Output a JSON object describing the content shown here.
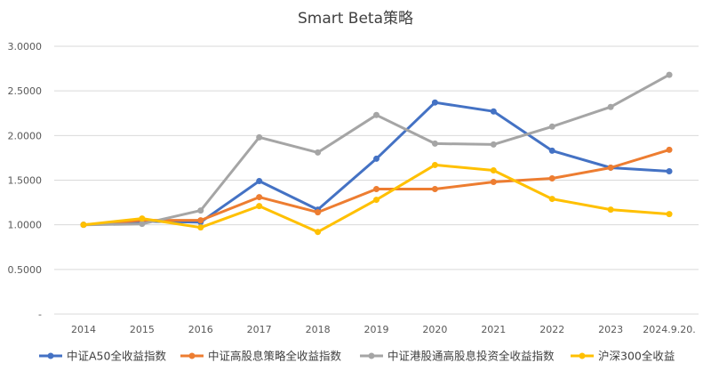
{
  "chart_data": {
    "type": "line",
    "title": "Smart Beta策略",
    "xlabel": "",
    "ylabel": "",
    "categories": [
      "2014",
      "2015",
      "2016",
      "2017",
      "2018",
      "2019",
      "2020",
      "2021",
      "2022",
      "2023",
      "2024.9.20."
    ],
    "ylim": [
      0,
      3.0
    ],
    "yticks": [
      0,
      0.5,
      1.0,
      1.5,
      2.0,
      2.5,
      3.0
    ],
    "ytick_labels": [
      "-",
      "0.5000",
      "1.0000",
      "1.5000",
      "2.0000",
      "2.5000",
      "3.0000"
    ],
    "grid": true,
    "legend_position": "bottom",
    "series": [
      {
        "name": "中证A50全收益指数",
        "color": "#4472C4",
        "values": [
          1.0,
          1.04,
          1.03,
          1.49,
          1.17,
          1.74,
          2.37,
          2.27,
          1.83,
          1.64,
          1.6
        ]
      },
      {
        "name": "中证高股息策略全收益指数",
        "color": "#ED7D31",
        "values": [
          1.0,
          1.05,
          1.05,
          1.31,
          1.14,
          1.4,
          1.4,
          1.48,
          1.52,
          1.64,
          1.84
        ]
      },
      {
        "name": "中证港股通高股息投资全收益指数",
        "color": "#A5A5A5",
        "values": [
          1.0,
          1.01,
          1.16,
          1.98,
          1.81,
          2.23,
          1.91,
          1.9,
          2.1,
          2.32,
          2.68
        ]
      },
      {
        "name": "沪深300全收益",
        "color": "#FFC000",
        "values": [
          1.0,
          1.07,
          0.97,
          1.21,
          0.92,
          1.28,
          1.67,
          1.61,
          1.29,
          1.17,
          1.12
        ]
      }
    ]
  }
}
